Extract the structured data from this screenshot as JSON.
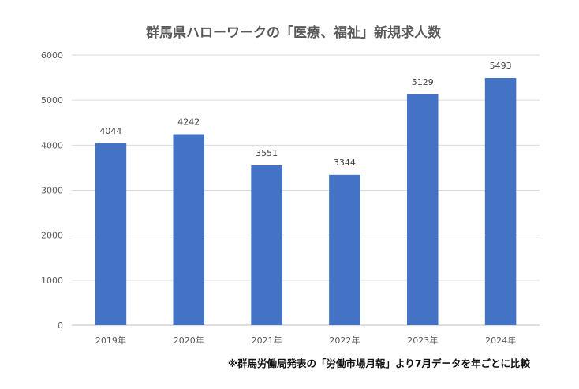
{
  "chart_data": {
    "type": "bar",
    "title": "群馬県ハローワークの「医療、福祉」新規求人数",
    "categories": [
      "2019年",
      "2020年",
      "2021年",
      "2022年",
      "2023年",
      "2024年"
    ],
    "values": [
      4044,
      4242,
      3551,
      3344,
      5129,
      5493
    ],
    "data_labels": [
      "4044",
      "4242",
      "3551",
      "3344",
      "5129",
      "5493"
    ],
    "yticks": [
      "0",
      "1000",
      "2000",
      "3000",
      "4000",
      "5000",
      "6000"
    ],
    "ylim": [
      0,
      6000
    ],
    "xlabel": "",
    "ylabel": "",
    "grid": true,
    "legend": "none",
    "bar_color": "#4472C4",
    "note": "※群馬労働局発表の「労働市場月報」より7月データを年ごとに比較"
  }
}
